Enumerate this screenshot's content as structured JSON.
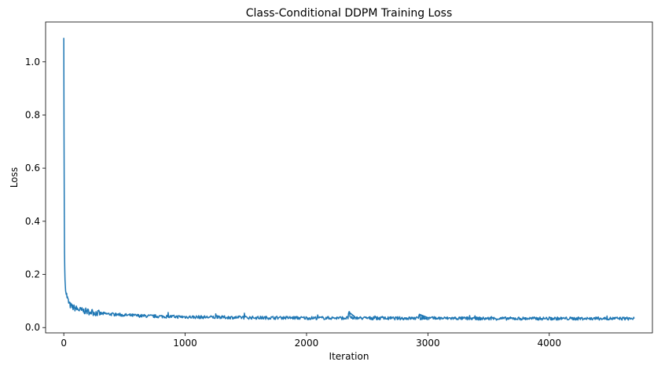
{
  "chart_data": {
    "type": "line",
    "title": "Class-Conditional DDPM Training Loss",
    "xlabel": "Iteration",
    "ylabel": "Loss",
    "xlim": [
      -150,
      4850
    ],
    "ylim": [
      -0.02,
      1.15
    ],
    "xticks": [
      0,
      1000,
      2000,
      3000,
      4000
    ],
    "yticks": [
      0.0,
      0.2,
      0.4,
      0.6,
      0.8,
      1.0
    ],
    "ytick_labels": [
      "0.0",
      "0.2",
      "0.4",
      "0.6",
      "0.8",
      "1.0"
    ],
    "grid": false,
    "color": "#1f77b4",
    "series": [
      {
        "x": [
          0,
          2,
          4,
          6,
          8,
          10,
          15,
          20,
          30,
          40,
          50,
          60,
          80,
          100,
          120,
          150,
          200,
          250,
          300,
          400,
          500,
          600,
          700,
          800,
          900,
          1000,
          1200,
          1400,
          1600,
          1800,
          2000,
          2200,
          2350,
          2400,
          2600,
          2800,
          2930,
          3000,
          3200,
          3400,
          3600,
          3800,
          4000,
          4200,
          4400,
          4600,
          4700
        ],
        "y": [
          1.09,
          0.72,
          0.45,
          0.28,
          0.22,
          0.18,
          0.15,
          0.13,
          0.11,
          0.095,
          0.085,
          0.08,
          0.075,
          0.072,
          0.068,
          0.064,
          0.06,
          0.056,
          0.053,
          0.05,
          0.047,
          0.045,
          0.043,
          0.042,
          0.041,
          0.04,
          0.039,
          0.038,
          0.037,
          0.037,
          0.036,
          0.036,
          0.058,
          0.036,
          0.035,
          0.035,
          0.05,
          0.035,
          0.035,
          0.034,
          0.034,
          0.034,
          0.034,
          0.034,
          0.034,
          0.034,
          0.034
        ]
      }
    ]
  }
}
